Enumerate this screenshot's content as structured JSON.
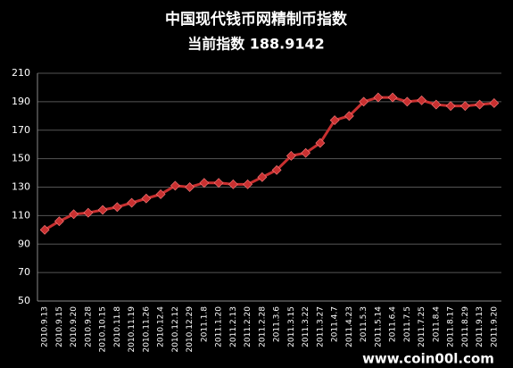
{
  "chart_data": {
    "type": "line",
    "title": "中国现代钱币网精制币指数",
    "subtitle": "当前指数 188.9142",
    "annotation": "www.coin00l.com",
    "categories": [
      "2010.9.13",
      "2010.9.15",
      "2010.9.20",
      "2010.9.28",
      "2010.10.15",
      "2010.11.8",
      "2010.11.19",
      "2010.11.26",
      "2010.12.4",
      "2010.12.12",
      "2010.12.29",
      "2011.1.8",
      "2011.1.20",
      "2011.2.13",
      "2011.2.20",
      "2011.2.28",
      "2011.3.6",
      "2011.3.15",
      "2011.3.22",
      "2011.3.27",
      "2011.4.7",
      "2011.4.23",
      "2011.5.3",
      "2011.5.14",
      "2011.6.4",
      "2011.7.5",
      "2011.7.25",
      "2011.8.4",
      "2011.8.17",
      "2011.8.29",
      "2011.9.13",
      "2011.9.20"
    ],
    "values": [
      100,
      106,
      111,
      112,
      114,
      116,
      119,
      122,
      125,
      131,
      130,
      133,
      133,
      132,
      132,
      137,
      142,
      152,
      154,
      161,
      177,
      180,
      190,
      193,
      193,
      190,
      191,
      188,
      187,
      187,
      188,
      189
    ],
    "color": "#c83030",
    "ylim": [
      50,
      210
    ],
    "yticks": [
      50,
      70,
      90,
      110,
      130,
      150,
      170,
      190,
      210
    ],
    "grid": true
  }
}
